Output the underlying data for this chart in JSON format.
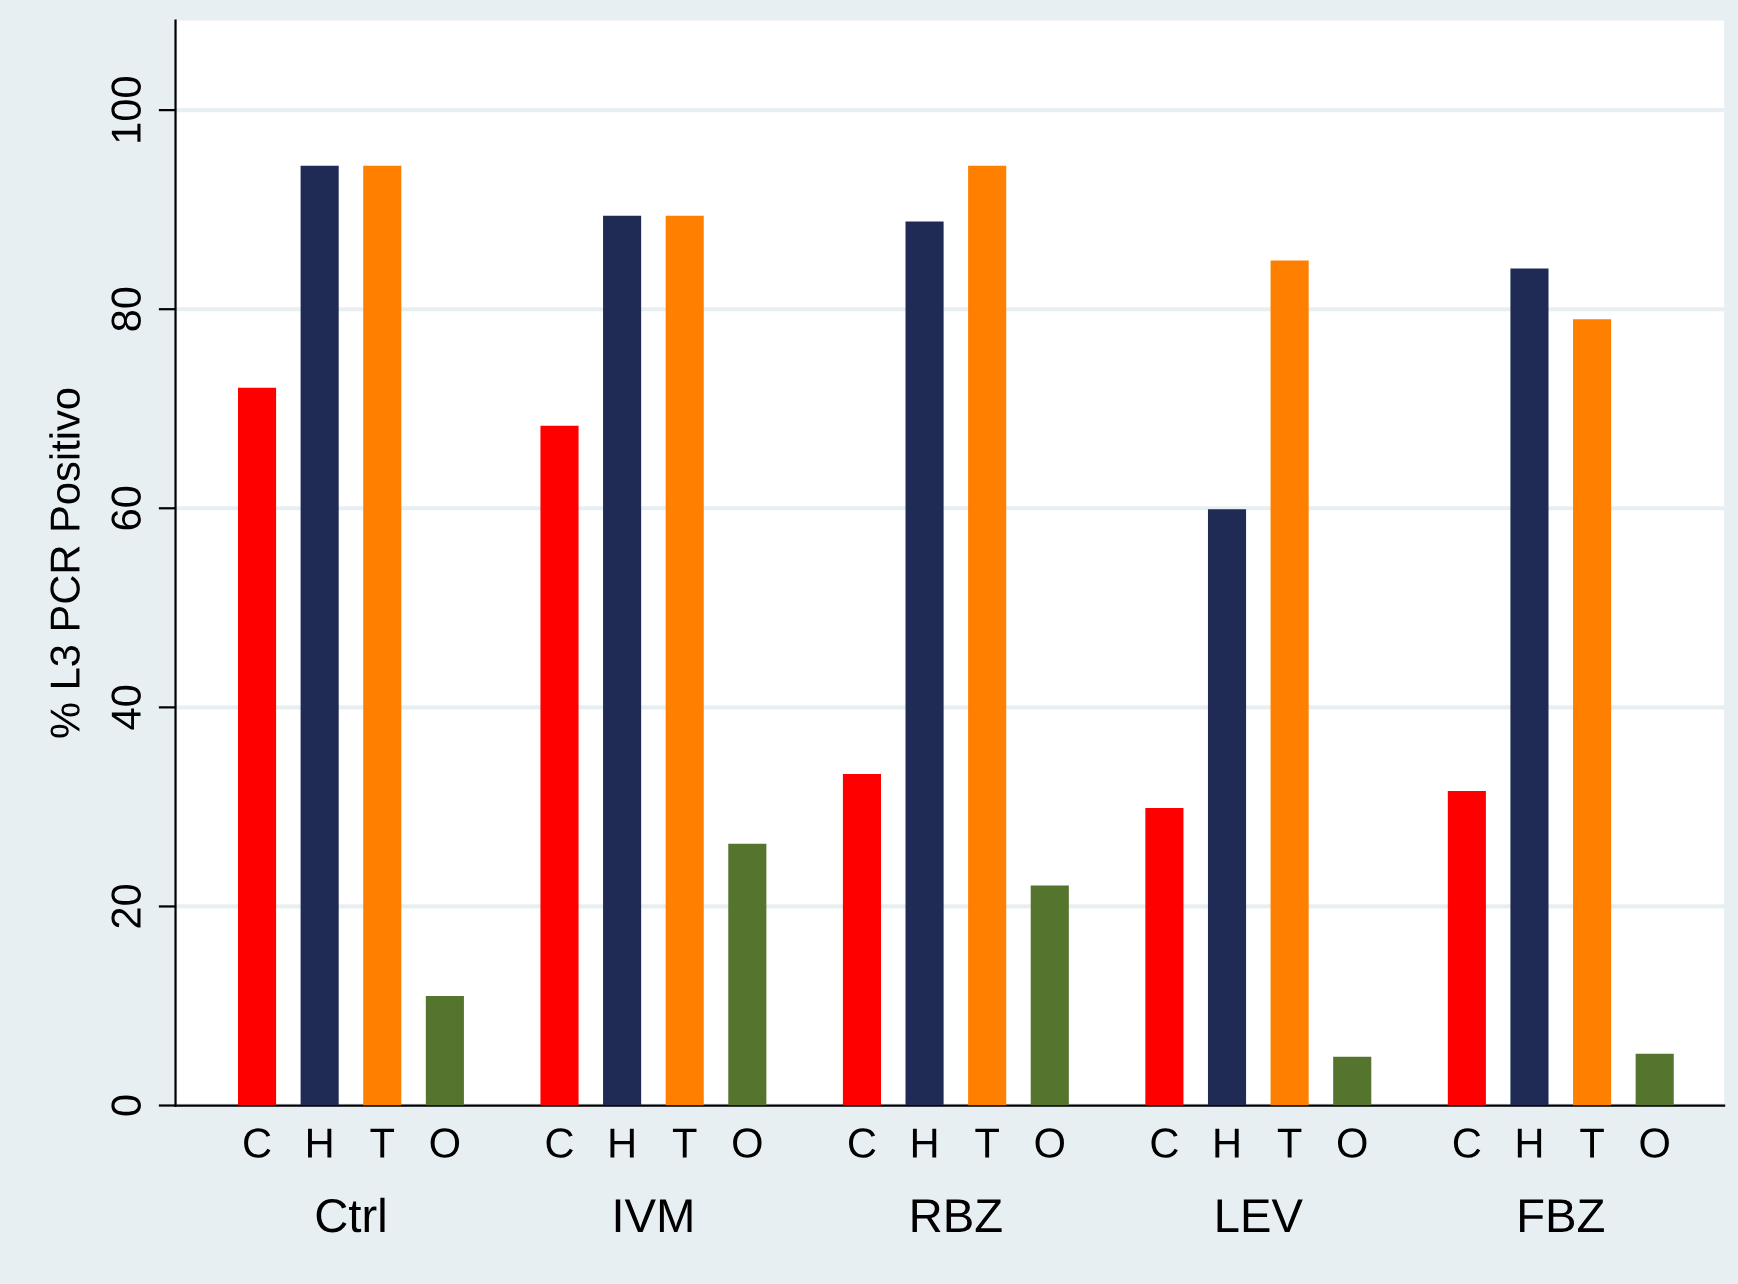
{
  "chart_data": {
    "type": "bar",
    "ylabel": "% L3 PCR Positivo",
    "categories": [
      "Ctrl",
      "IVM",
      "RBZ",
      "LEV",
      "FBZ"
    ],
    "series": [
      {
        "name": "C",
        "color": "#ff0000",
        "values": [
          72.1,
          68.3,
          33.3,
          29.9,
          31.6
        ]
      },
      {
        "name": "H",
        "color": "#1f2b54",
        "values": [
          94.4,
          89.4,
          88.8,
          59.9,
          84.1
        ]
      },
      {
        "name": "T",
        "color": "#ff7f00",
        "values": [
          94.4,
          89.4,
          94.4,
          84.9,
          79.0
        ]
      },
      {
        "name": "O",
        "color": "#55742e",
        "values": [
          11.0,
          26.3,
          22.1,
          4.9,
          5.2
        ]
      }
    ],
    "ylim": [
      0,
      109
    ],
    "yticks": [
      0,
      20,
      40,
      60,
      80,
      100
    ],
    "grid": "y"
  }
}
